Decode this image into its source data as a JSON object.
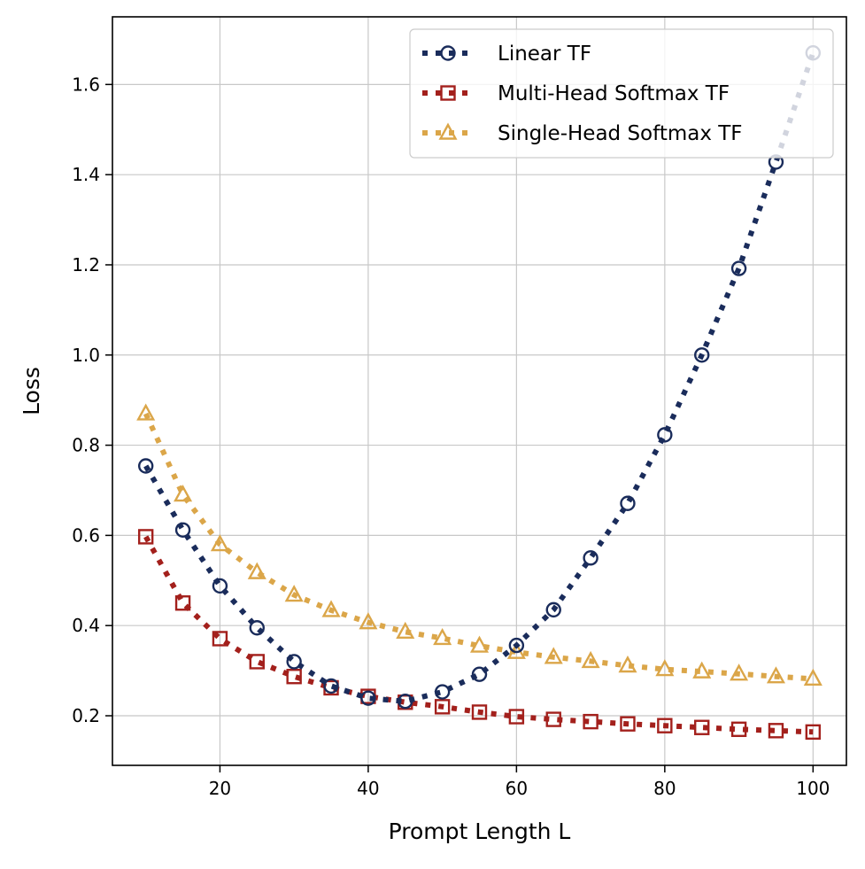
{
  "chart_data": {
    "type": "line",
    "title": "",
    "xlabel": "Prompt Length L",
    "ylabel": "Loss",
    "xlim": [
      5.5,
      104.5
    ],
    "ylim": [
      0.09,
      1.75
    ],
    "xticks": [
      20,
      40,
      60,
      80,
      100
    ],
    "yticks": [
      0.2,
      0.4,
      0.6,
      0.8,
      1.0,
      1.2,
      1.4,
      1.6
    ],
    "xtick_labels": [
      "20",
      "40",
      "60",
      "80",
      "100"
    ],
    "ytick_labels": [
      "0.2",
      "0.4",
      "0.6",
      "0.8",
      "1.0",
      "1.2",
      "1.4",
      "1.6"
    ],
    "grid": true,
    "legend_position": "top-right",
    "x": [
      10,
      15,
      20,
      25,
      30,
      35,
      40,
      45,
      50,
      55,
      60,
      65,
      70,
      75,
      80,
      85,
      90,
      95,
      100
    ],
    "series": [
      {
        "name": "Linear TF",
        "color": "#1a2c5b",
        "marker": "circle",
        "values": [
          0.754,
          0.612,
          0.488,
          0.395,
          0.32,
          0.266,
          0.239,
          0.232,
          0.253,
          0.292,
          0.356,
          0.435,
          0.55,
          0.671,
          0.823,
          1.0,
          1.192,
          1.428,
          1.67
        ]
      },
      {
        "name": "Multi-Head Softmax TF",
        "color": "#a3201c",
        "marker": "square",
        "values": [
          0.597,
          0.45,
          0.371,
          0.32,
          0.287,
          0.262,
          0.243,
          0.23,
          0.22,
          0.208,
          0.198,
          0.192,
          0.187,
          0.182,
          0.178,
          0.174,
          0.17,
          0.167,
          0.164
        ]
      },
      {
        "name": "Single-Head Softmax TF",
        "color": "#dba649",
        "marker": "triangle",
        "values": [
          0.87,
          0.69,
          0.58,
          0.518,
          0.468,
          0.434,
          0.407,
          0.386,
          0.372,
          0.355,
          0.341,
          0.33,
          0.321,
          0.311,
          0.303,
          0.298,
          0.293,
          0.287,
          0.282
        ]
      }
    ]
  }
}
